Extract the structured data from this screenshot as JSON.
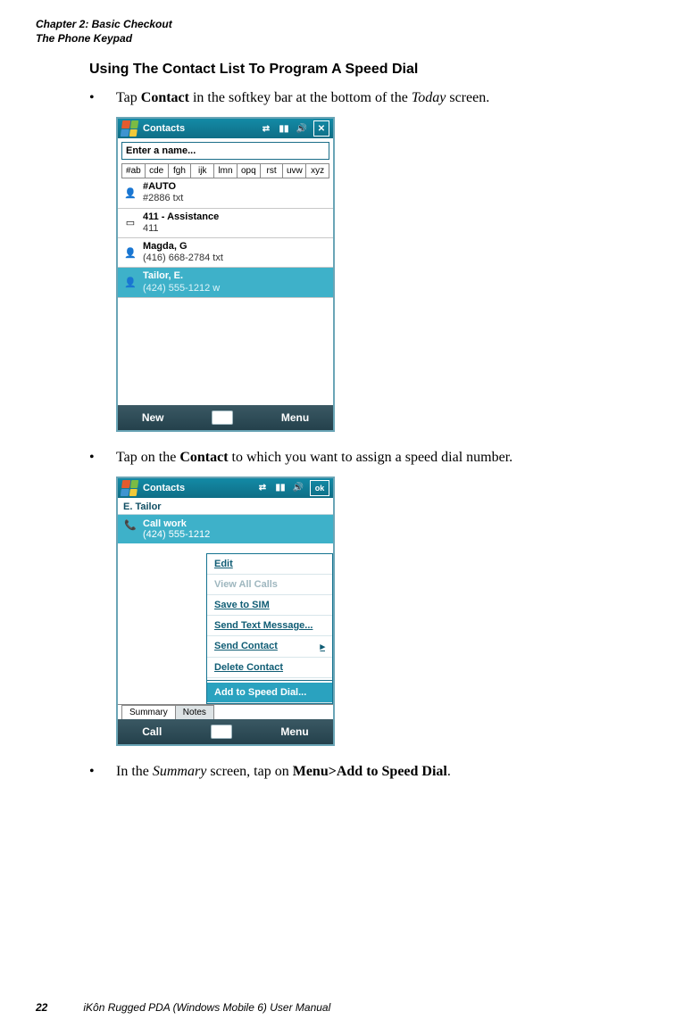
{
  "header": {
    "chapter": "Chapter 2:  Basic Checkout",
    "section": "The Phone Keypad"
  },
  "title": "Using The Contact List To Program A Speed Dial",
  "step1": {
    "pre": "Tap ",
    "bold": "Contact",
    "mid": " in the softkey bar at the bottom of the ",
    "ital": "Today",
    "post": " screen."
  },
  "step2": {
    "pre": "Tap on the ",
    "bold": "Contact",
    "post": " to which you want to assign a speed dial number."
  },
  "step3": {
    "pre": "In the ",
    "ital": "Summary",
    "mid": " screen, tap on ",
    "bold": "Menu>Add to Speed Dial",
    "post": "."
  },
  "shot1": {
    "title": "Contacts",
    "search_placeholder": "Enter a name...",
    "alpha": [
      "#ab",
      "cde",
      "fgh",
      "ijk",
      "lmn",
      "opq",
      "rst",
      "uvw",
      "xyz"
    ],
    "rows": [
      {
        "name": "#AUTO",
        "sub": "#2886   txt",
        "icon": "person"
      },
      {
        "name": "411 - Assistance",
        "sub": "411",
        "icon": "sim"
      },
      {
        "name": "Magda, G",
        "sub": "(416) 668-2784   txt",
        "icon": "person"
      },
      {
        "name": "Tailor, E.",
        "sub": "(424) 555-1212   w",
        "icon": "person",
        "selected": true
      }
    ],
    "soft_left": "New",
    "soft_right": "Menu"
  },
  "shot2": {
    "title": "Contacts",
    "name": "E. Tailor",
    "call_label": "Call work",
    "call_num": "(424) 555-1212",
    "menu": [
      "Edit",
      "View All Calls",
      "Save to SIM",
      "Send Text Message...",
      "Send Contact",
      "Delete Contact",
      "Add to Speed Dial..."
    ],
    "tabs": [
      "Summary",
      "Notes"
    ],
    "soft_left": "Call",
    "soft_right": "Menu"
  },
  "footer": {
    "page": "22",
    "manual": "iKôn Rugged PDA (Windows Mobile 6) User Manual"
  }
}
